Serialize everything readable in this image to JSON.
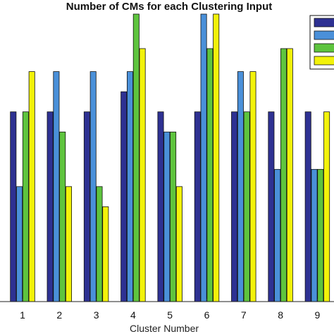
{
  "chart_data": {
    "type": "bar",
    "title": "Number of CMs for each Clustering Input",
    "xlabel": "Cluster Number",
    "ylabel": "",
    "categories": [
      "1",
      "2",
      "3",
      "4",
      "5",
      "6",
      "7",
      "8",
      "9"
    ],
    "ylim": [
      0,
      1
    ],
    "grid": false,
    "legend_position": "top-right",
    "series": [
      {
        "color": "#2e3192",
        "values": [
          0.66,
          0.66,
          0.66,
          0.73,
          0.66,
          0.66,
          0.66,
          0.66,
          0.66
        ]
      },
      {
        "color": "#4a90d9",
        "values": [
          0.4,
          0.8,
          0.8,
          0.8,
          0.59,
          1.0,
          0.8,
          0.46,
          0.46
        ]
      },
      {
        "color": "#5ec43e",
        "values": [
          0.66,
          0.59,
          0.4,
          1.0,
          0.59,
          0.88,
          0.66,
          0.88,
          0.46
        ]
      },
      {
        "color": "#f2f20a",
        "values": [
          0.8,
          0.4,
          0.33,
          0.88,
          0.4,
          1.0,
          0.8,
          0.88,
          0.66
        ]
      }
    ]
  }
}
